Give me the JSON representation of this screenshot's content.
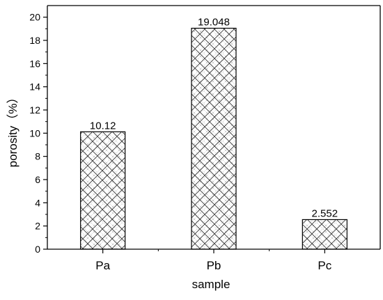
{
  "chart_data": {
    "type": "bar",
    "title": "",
    "xlabel": "sample",
    "ylabel": "porosity（%）",
    "categories": [
      "Pa",
      "Pb",
      "Pc"
    ],
    "values": [
      10.12,
      19.048,
      2.552
    ],
    "data_labels": [
      "10.12",
      "19.048",
      "2.552"
    ],
    "ylim": [
      0,
      21
    ],
    "y_ticks": [
      0,
      2,
      4,
      6,
      8,
      10,
      12,
      14,
      16,
      18,
      20
    ],
    "y_tick_labels": [
      "0",
      "2",
      "4",
      "6",
      "8",
      "10",
      "12",
      "14",
      "16",
      "18",
      "20"
    ],
    "grid": false,
    "legend": "none",
    "bar_fill": "crosshatch",
    "colors": {
      "axis": "#000000",
      "bar_edge": "#000000",
      "hatch": "#222222",
      "background": "#ffffff"
    }
  }
}
